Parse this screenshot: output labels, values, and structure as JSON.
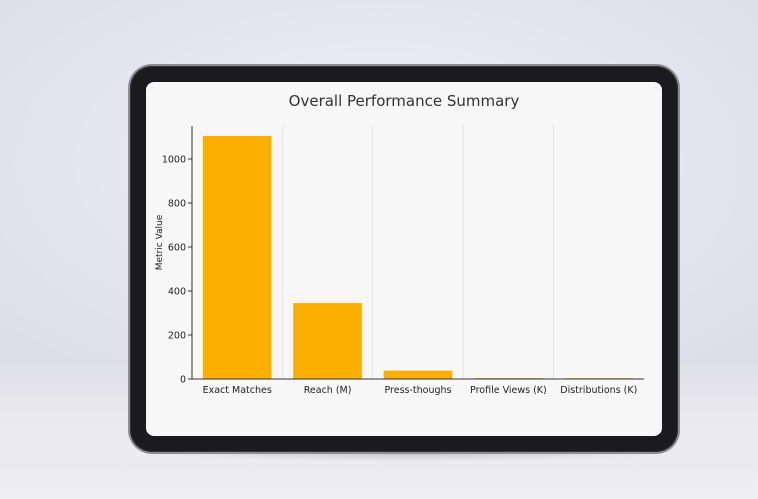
{
  "chart_data": {
    "type": "bar",
    "title": "Overall Performance Summary",
    "xlabel": "",
    "ylabel": "Metric Value",
    "categories": [
      "Exact Matches",
      "Reach (M)",
      "Press-thoughs",
      "Profile Views (K)",
      "Distributions (K)"
    ],
    "values": [
      1105,
      345,
      38,
      4,
      1
    ],
    "ylim": [
      0,
      1150
    ],
    "yticks": [
      0,
      200,
      400,
      600,
      800,
      1000
    ],
    "bar_color": "#fbaf00",
    "grid": "vertical",
    "legend": "none"
  }
}
